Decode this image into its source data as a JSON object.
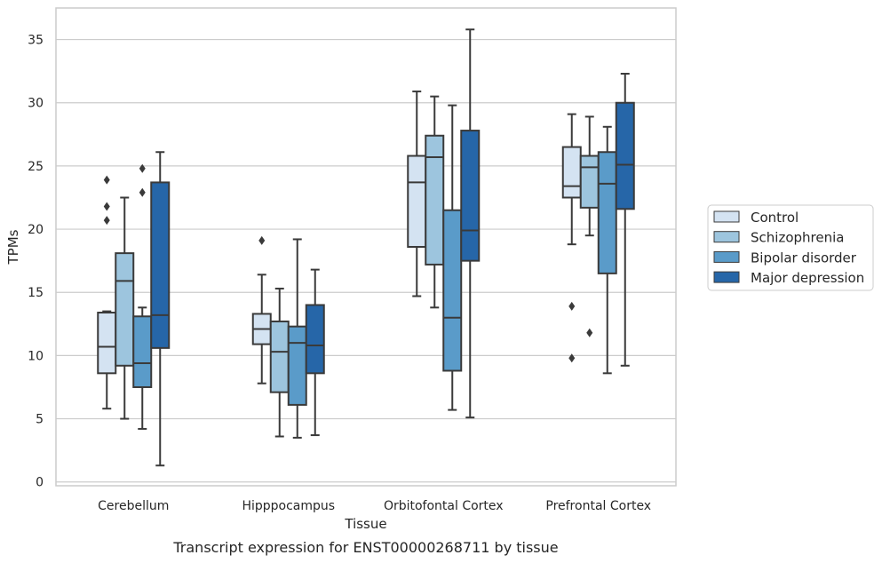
{
  "chart_data": {
    "type": "box",
    "title": "",
    "caption": "Transcript expression for ENST00000268711 by tissue",
    "xlabel": "Tissue",
    "ylabel": "TPMs",
    "ylim": [
      -0.3,
      37.5
    ],
    "yticks": [
      0,
      5,
      10,
      15,
      20,
      25,
      30,
      35
    ],
    "grid": "horizontal",
    "legend_position": "right",
    "categories": [
      "Cerebellum",
      "Hipppocampus",
      "Orbitofontal Cortex",
      "Prefrontal Cortex"
    ],
    "series": [
      {
        "name": "Control",
        "color": "#d4e3f2",
        "boxes": [
          {
            "whislo": 5.8,
            "q1": 8.6,
            "med": 10.7,
            "q3": 13.4,
            "whishi": 13.5,
            "fliers": []
          },
          {
            "whislo": 7.8,
            "q1": 10.9,
            "med": 12.1,
            "q3": 13.3,
            "whishi": 16.4,
            "fliers": [
              19.1
            ]
          },
          {
            "whislo": 14.7,
            "q1": 18.6,
            "med": 23.7,
            "q3": 25.8,
            "whishi": 30.9,
            "fliers": []
          },
          {
            "whislo": 18.8,
            "q1": 22.5,
            "med": 23.4,
            "q3": 26.5,
            "whishi": 29.1,
            "fliers": [
              13.9,
              9.8
            ]
          }
        ]
      },
      {
        "name": "Schizophrenia",
        "color": "#9dc5de",
        "boxes": [
          {
            "whislo": 5.0,
            "q1": 9.2,
            "med": 15.9,
            "q3": 18.1,
            "whishi": 22.5,
            "fliers": []
          },
          {
            "whislo": 3.6,
            "q1": 7.1,
            "med": 10.3,
            "q3": 12.7,
            "whishi": 15.3,
            "fliers": []
          },
          {
            "whislo": 13.8,
            "q1": 17.2,
            "med": 25.7,
            "q3": 27.4,
            "whishi": 30.5,
            "fliers": []
          },
          {
            "whislo": 19.5,
            "q1": 21.7,
            "med": 24.9,
            "q3": 25.8,
            "whishi": 28.9,
            "fliers": [
              11.8
            ]
          }
        ]
      },
      {
        "name": "Bipolar disorder",
        "color": "#5a9bc9",
        "boxes": [
          {
            "whislo": 4.2,
            "q1": 7.5,
            "med": 9.4,
            "q3": 13.1,
            "whishi": 13.8,
            "fliers": [
              24.8,
              22.9
            ]
          },
          {
            "whislo": 3.5,
            "q1": 6.1,
            "med": 11.0,
            "q3": 12.3,
            "whishi": 19.2,
            "fliers": []
          },
          {
            "whislo": 5.7,
            "q1": 8.8,
            "med": 13.0,
            "q3": 21.5,
            "whishi": 29.8,
            "fliers": []
          },
          {
            "whislo": 8.6,
            "q1": 16.5,
            "med": 23.6,
            "q3": 26.1,
            "whishi": 28.1,
            "fliers": []
          }
        ]
      },
      {
        "name": "Major depression",
        "color": "#2666a8",
        "boxes": [
          {
            "whislo": 1.3,
            "q1": 10.6,
            "med": 13.2,
            "q3": 23.7,
            "whishi": 26.1,
            "fliers": []
          },
          {
            "whislo": 3.7,
            "q1": 8.6,
            "med": 10.8,
            "q3": 14.0,
            "whishi": 16.8,
            "fliers": []
          },
          {
            "whislo": 5.1,
            "q1": 17.5,
            "med": 19.9,
            "q3": 27.8,
            "whishi": 35.8,
            "fliers": []
          },
          {
            "whislo": 9.2,
            "q1": 21.6,
            "med": 25.1,
            "q3": 30.0,
            "whishi": 32.3,
            "fliers": []
          }
        ]
      }
    ],
    "extra_fliers_by_category": [
      {
        "category": "Cerebellum",
        "series": "Control",
        "values": [
          23.9,
          21.8,
          20.7
        ]
      }
    ]
  },
  "style": {
    "line_color": "#3a3a3a",
    "grid_color": "#cccccc",
    "frame_color": "#cccccc"
  }
}
